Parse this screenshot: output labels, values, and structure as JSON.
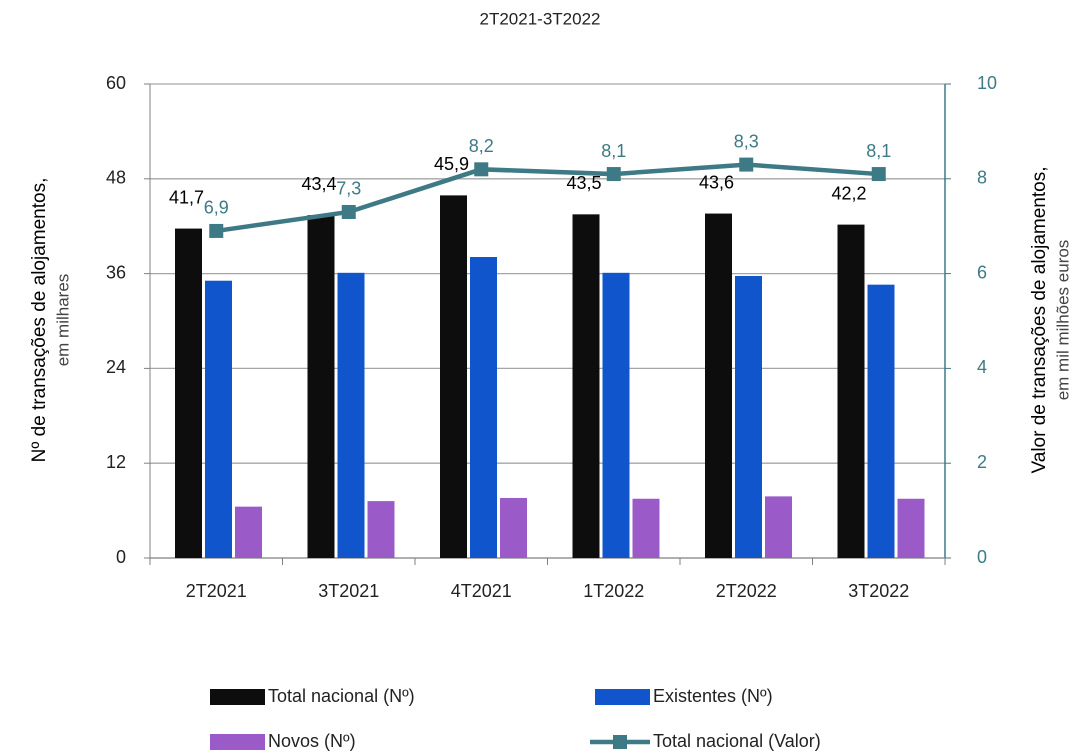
{
  "chart_data": {
    "type": "bar",
    "title": "2T2021-3T2022",
    "y_label": "Nº  de transações de alojamentos,",
    "y_sublabel": "em milhares",
    "y2_label": "Valor de transações de alojamentos,",
    "y2_sublabel": "em mil milhões euros",
    "categories": [
      "2T2021",
      "3T2021",
      "4T2021",
      "1T2022",
      "2T2022",
      "3T2022"
    ],
    "series": [
      {
        "name": "Total nacional (Nº)",
        "color": "#0d0d0d",
        "values": [
          41.7,
          43.4,
          45.9,
          43.5,
          43.6,
          42.2
        ],
        "value_labels": [
          "41,7",
          "43,4",
          "45,9",
          "43,5",
          "43,6",
          "42,2"
        ]
      },
      {
        "name": "Existentes (Nº)",
        "color": "#1155cc",
        "values": [
          35.1,
          36.1,
          38.1,
          36.1,
          35.7,
          34.6
        ]
      },
      {
        "name": "Novos (Nº)",
        "color": "#9a5bc8",
        "values": [
          6.5,
          7.2,
          7.6,
          7.5,
          7.8,
          7.5
        ]
      },
      {
        "name": "Total nacional (Valor)",
        "type": "line",
        "axis": "y2",
        "color": "#3e7a85",
        "values": [
          6.9,
          7.3,
          8.2,
          8.1,
          8.3,
          8.1
        ],
        "value_labels": [
          "6,9",
          "7,3",
          "8,2",
          "8,1",
          "8,3",
          "8,1"
        ]
      }
    ],
    "ylim": [
      0,
      60
    ],
    "yticks": [
      0,
      12,
      24,
      36,
      48,
      60
    ],
    "y2lim": [
      0,
      10
    ],
    "y2ticks": [
      0,
      2,
      4,
      6,
      8,
      10
    ],
    "grid": true
  }
}
